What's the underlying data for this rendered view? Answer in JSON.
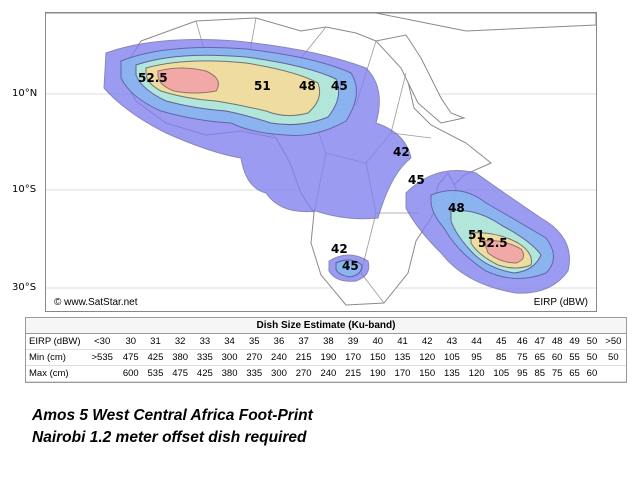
{
  "map": {
    "lat_labels": [
      "10°N",
      "10°S",
      "30°S"
    ],
    "copyright": "© www.SatStar.net",
    "unit_label": "EIRP (dBW)",
    "contours": [
      "52.5",
      "51",
      "48",
      "45",
      "42",
      "45",
      "48",
      "51",
      "52.5",
      "42",
      "45"
    ],
    "colors": {
      "ocean": "#ffffff",
      "land": "#ffffff",
      "border": "#888888",
      "outer": "#8080ee",
      "mid": "#88b8f0",
      "inner": "#b8ecd8",
      "core": "#f4dc9c",
      "peak": "#f3a0a8"
    }
  },
  "table": {
    "title": "Dish Size Estimate (Ku-band)",
    "rows": [
      {
        "label": "EIRP (dBW)",
        "values": [
          "<30",
          "30",
          "31",
          "32",
          "33",
          "34",
          "35",
          "36",
          "37",
          "38",
          "39",
          "40",
          "41",
          "42",
          "43",
          "44",
          "45",
          "46",
          "47",
          "48",
          "49",
          "50",
          ">50"
        ]
      },
      {
        "label": "Min (cm)",
        "values": [
          ">535",
          "475",
          "425",
          "380",
          "335",
          "300",
          "270",
          "240",
          "215",
          "190",
          "170",
          "150",
          "135",
          "120",
          "105",
          "95",
          "85",
          "75",
          "65",
          "60",
          "55",
          "50",
          "50"
        ]
      },
      {
        "label": "Max (cm)",
        "values": [
          "",
          "600",
          "535",
          "475",
          "425",
          "380",
          "335",
          "300",
          "270",
          "240",
          "215",
          "190",
          "170",
          "150",
          "135",
          "120",
          "105",
          "95",
          "85",
          "75",
          "65",
          "60",
          ""
        ]
      }
    ]
  },
  "caption": {
    "line1": "Amos 5 West Central Africa Foot-Print",
    "line2": "Nairobi 1.2 meter offset dish required"
  }
}
